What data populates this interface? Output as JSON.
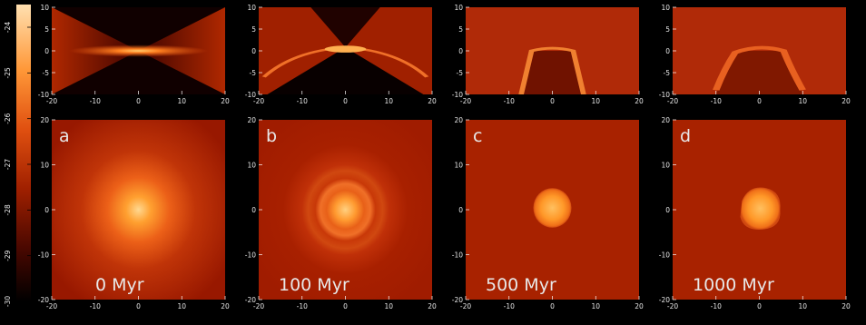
{
  "colorbar": {
    "ticks": [
      -24,
      -25,
      -26,
      -27,
      -28,
      -29,
      -30
    ]
  },
  "panels": [
    {
      "label": "a",
      "time": "0 Myr"
    },
    {
      "label": "b",
      "time": "100 Myr"
    },
    {
      "label": "c",
      "time": "500 Myr"
    },
    {
      "label": "d",
      "time": "1000 Myr"
    }
  ],
  "top_axes": {
    "xticks": [
      -20,
      -10,
      0,
      10,
      20
    ],
    "yticks": [
      10,
      5,
      0,
      -5,
      -10
    ]
  },
  "bottom_axes": {
    "xticks": [
      -20,
      -10,
      0,
      10,
      20
    ],
    "yticks": [
      20,
      10,
      0,
      -10,
      -20
    ]
  }
}
